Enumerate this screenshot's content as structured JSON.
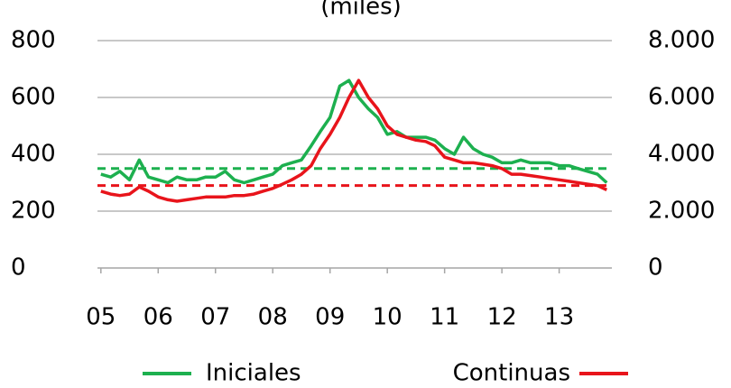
{
  "chart_data": {
    "type": "line",
    "title": "(miles)",
    "x": [
      2005.0,
      2005.17,
      2005.33,
      2005.5,
      2005.67,
      2005.83,
      2006.0,
      2006.17,
      2006.33,
      2006.5,
      2006.67,
      2006.83,
      2007.0,
      2007.17,
      2007.33,
      2007.5,
      2007.67,
      2007.83,
      2008.0,
      2008.17,
      2008.33,
      2008.5,
      2008.67,
      2008.83,
      2009.0,
      2009.17,
      2009.33,
      2009.5,
      2009.67,
      2009.83,
      2010.0,
      2010.17,
      2010.33,
      2010.5,
      2010.67,
      2010.83,
      2011.0,
      2011.17,
      2011.33,
      2011.5,
      2011.67,
      2011.83,
      2012.0,
      2012.17,
      2012.33,
      2012.5,
      2012.67,
      2012.83,
      2013.0,
      2013.17,
      2013.33,
      2013.5,
      2013.67,
      2013.83
    ],
    "series": [
      {
        "name": "Iniciales",
        "color": "#1db04f",
        "axis": "y",
        "values": [
          330,
          320,
          340,
          310,
          380,
          320,
          310,
          300,
          320,
          310,
          310,
          320,
          320,
          340,
          310,
          300,
          310,
          320,
          330,
          360,
          370,
          380,
          430,
          480,
          530,
          640,
          660,
          600,
          560,
          530,
          470,
          480,
          460,
          460,
          460,
          450,
          420,
          400,
          460,
          420,
          400,
          390,
          370,
          370,
          380,
          370,
          370,
          370,
          360,
          360,
          350,
          340,
          330,
          300
        ]
      },
      {
        "name": "Continuas",
        "color": "#e8141b",
        "axis": "y2",
        "values": [
          2700,
          2600,
          2550,
          2600,
          2850,
          2700,
          2500,
          2400,
          2350,
          2400,
          2450,
          2500,
          2500,
          2500,
          2550,
          2550,
          2600,
          2700,
          2800,
          2950,
          3100,
          3300,
          3600,
          4200,
          4700,
          5300,
          6000,
          6600,
          6000,
          5600,
          5000,
          4700,
          4600,
          4500,
          4450,
          4300,
          3900,
          3800,
          3700,
          3700,
          3650,
          3600,
          3500,
          3300,
          3300,
          3250,
          3200,
          3150,
          3100,
          3050,
          3000,
          2950,
          2900,
          2750
        ]
      }
    ],
    "average_lines": [
      {
        "value": 350,
        "axis": "y",
        "color": "#1db04f"
      },
      {
        "value": 2900,
        "axis": "y2",
        "color": "#e8141b"
      }
    ],
    "xlim": [
      2004.94,
      2013.92
    ],
    "xticks": [
      {
        "value": 2005,
        "label": "05"
      },
      {
        "value": 2006,
        "label": "06"
      },
      {
        "value": 2007,
        "label": "07"
      },
      {
        "value": 2008,
        "label": "08"
      },
      {
        "value": 2009,
        "label": "09"
      },
      {
        "value": 2010,
        "label": "10"
      },
      {
        "value": 2011,
        "label": "11"
      },
      {
        "value": 2012,
        "label": "12"
      },
      {
        "value": 2013,
        "label": "13"
      }
    ],
    "ylim": [
      0,
      800
    ],
    "yticks": [
      0,
      200,
      400,
      600,
      800
    ],
    "y2lim": [
      0,
      8000
    ],
    "y2ticks": [
      0,
      {
        "value": 2000,
        "label": "2.000"
      },
      {
        "value": 4000,
        "label": "4.000"
      },
      {
        "value": 6000,
        "label": "6.000"
      },
      {
        "value": 8000,
        "label": "8.000"
      }
    ],
    "grid": true,
    "legend": "bottom"
  }
}
